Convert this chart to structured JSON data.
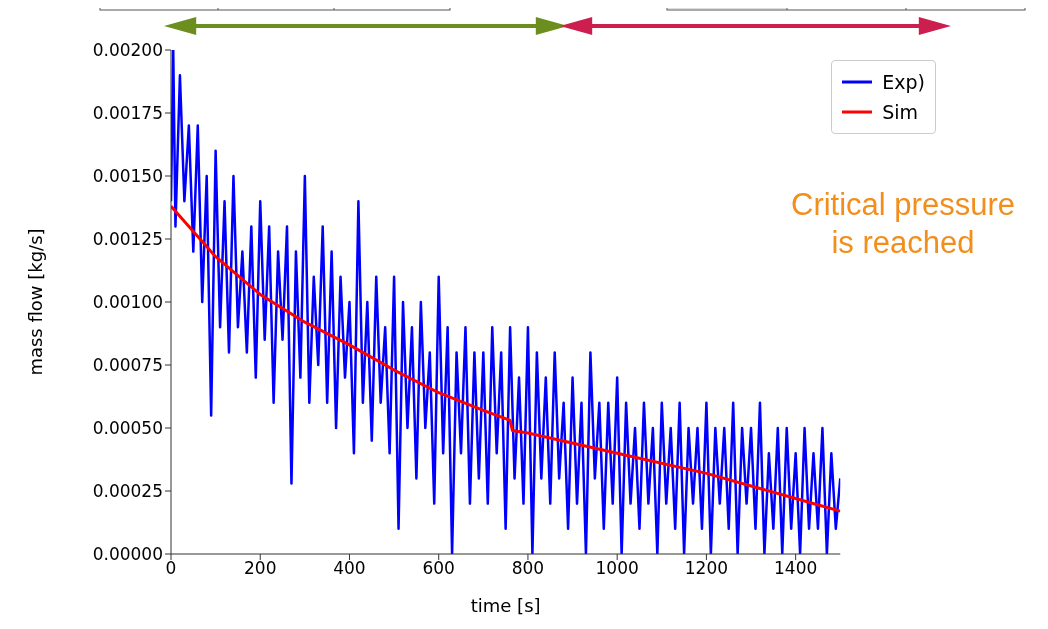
{
  "chart_data": {
    "type": "line",
    "xlabel": "time [s]",
    "ylabel": "mass flow  [kg/s]",
    "xlim": [
      0,
      1500
    ],
    "ylim": [
      0,
      0.002
    ],
    "xticks": [
      0,
      200,
      400,
      600,
      800,
      1000,
      1200,
      1400
    ],
    "yticks": [
      {
        "value": 0,
        "label": "0.00000"
      },
      {
        "value": 0.00025,
        "label": "0.00025"
      },
      {
        "value": 0.0005,
        "label": "0.00050"
      },
      {
        "value": 0.00075,
        "label": "0.00075"
      },
      {
        "value": 0.001,
        "label": "0.00100"
      },
      {
        "value": 0.00125,
        "label": "0.00125"
      },
      {
        "value": 0.0015,
        "label": "0.00150"
      },
      {
        "value": 0.00175,
        "label": "0.00175"
      },
      {
        "value": 0.002,
        "label": "0.00200"
      }
    ],
    "grid": false,
    "legend": "top right",
    "marker": "none",
    "line_style": "solid",
    "annotations": [
      "Critical pressure\nis reached"
    ],
    "series": [
      {
        "name": "Exp)",
        "color": "#0000ff",
        "x": [
          0,
          5,
          10,
          20,
          30,
          40,
          50,
          60,
          70,
          80,
          90,
          100,
          110,
          120,
          130,
          140,
          150,
          160,
          170,
          180,
          190,
          200,
          210,
          220,
          230,
          240,
          250,
          260,
          270,
          280,
          290,
          300,
          310,
          320,
          330,
          340,
          350,
          360,
          370,
          380,
          390,
          400,
          410,
          420,
          430,
          440,
          450,
          460,
          470,
          480,
          490,
          500,
          510,
          520,
          530,
          540,
          550,
          560,
          570,
          580,
          590,
          600,
          610,
          620,
          630,
          640,
          650,
          660,
          670,
          680,
          690,
          700,
          710,
          720,
          730,
          740,
          750,
          760,
          770,
          780,
          790,
          800,
          810,
          820,
          830,
          840,
          850,
          860,
          870,
          880,
          890,
          900,
          910,
          920,
          930,
          940,
          950,
          960,
          970,
          980,
          990,
          1000,
          1010,
          1020,
          1030,
          1040,
          1050,
          1060,
          1070,
          1080,
          1090,
          1100,
          1110,
          1120,
          1130,
          1140,
          1150,
          1160,
          1170,
          1180,
          1190,
          1200,
          1210,
          1220,
          1230,
          1240,
          1250,
          1260,
          1270,
          1280,
          1290,
          1300,
          1310,
          1320,
          1330,
          1340,
          1350,
          1360,
          1370,
          1380,
          1390,
          1400,
          1410,
          1420,
          1430,
          1440,
          1450,
          1460,
          1470,
          1480,
          1490,
          1500
        ],
        "values": [
          0.0014,
          0.002,
          0.0013,
          0.0019,
          0.0014,
          0.0017,
          0.0012,
          0.0017,
          0.001,
          0.0015,
          0.00055,
          0.0016,
          0.0009,
          0.0014,
          0.0008,
          0.0015,
          0.0009,
          0.0012,
          0.0008,
          0.0013,
          0.0007,
          0.0014,
          0.00085,
          0.0013,
          0.0006,
          0.0012,
          0.00085,
          0.0013,
          0.00028,
          0.0012,
          0.0007,
          0.0015,
          0.0006,
          0.0011,
          0.00075,
          0.0013,
          0.0006,
          0.0012,
          0.0005,
          0.0011,
          0.0007,
          0.001,
          0.0004,
          0.0014,
          0.0006,
          0.001,
          0.00045,
          0.0011,
          0.0006,
          0.0009,
          0.0004,
          0.0011,
          0.0001,
          0.001,
          0.0005,
          0.0009,
          0.0003,
          0.001,
          0.0005,
          0.0008,
          0.0002,
          0.0011,
          0.0004,
          0.0009,
          0,
          0.0008,
          0.0004,
          0.0009,
          0.0002,
          0.0008,
          0.0003,
          0.0008,
          0.0002,
          0.0009,
          0.0004,
          0.0008,
          0.0001,
          0.0009,
          0.0003,
          0.0007,
          0.0002,
          0.0009,
          0,
          0.0008,
          0.0003,
          0.0007,
          0.0002,
          0.0008,
          0.0003,
          0.0006,
          0.0001,
          0.0007,
          0.0002,
          0.0006,
          0,
          0.0008,
          0.0003,
          0.0006,
          0.0001,
          0.0006,
          0.0002,
          0.0007,
          0,
          0.0006,
          0.0002,
          0.0005,
          0.0001,
          0.0006,
          0.0002,
          0.0005,
          0,
          0.0006,
          0.0002,
          0.0005,
          0.0001,
          0.0006,
          0,
          0.0005,
          0.0002,
          0.0005,
          0.0001,
          0.0006,
          0,
          0.0005,
          0.0002,
          0.0005,
          0.0001,
          0.0006,
          0,
          0.0005,
          0.0002,
          0.0005,
          0.0001,
          0.0006,
          0,
          0.0004,
          0.0001,
          0.0005,
          0,
          0.0005,
          0.0001,
          0.0004,
          0,
          0.0005,
          0.0001,
          0.0004,
          0.0001,
          0.0005,
          0,
          0.0004,
          0.0001,
          0.0003
        ]
      },
      {
        "name": "Sim",
        "color": "#ff0000",
        "x": [
          0,
          100,
          200,
          300,
          400,
          500,
          600,
          700,
          760,
          765,
          800,
          1000,
          1200,
          1400,
          1500
        ],
        "values": [
          0.00138,
          0.00118,
          0.00103,
          0.00092,
          0.00083,
          0.00073,
          0.00064,
          0.00057,
          0.00053,
          0.00049,
          0.00048,
          0.0004,
          0.00032,
          0.00022,
          0.00017
        ]
      }
    ]
  }
}
